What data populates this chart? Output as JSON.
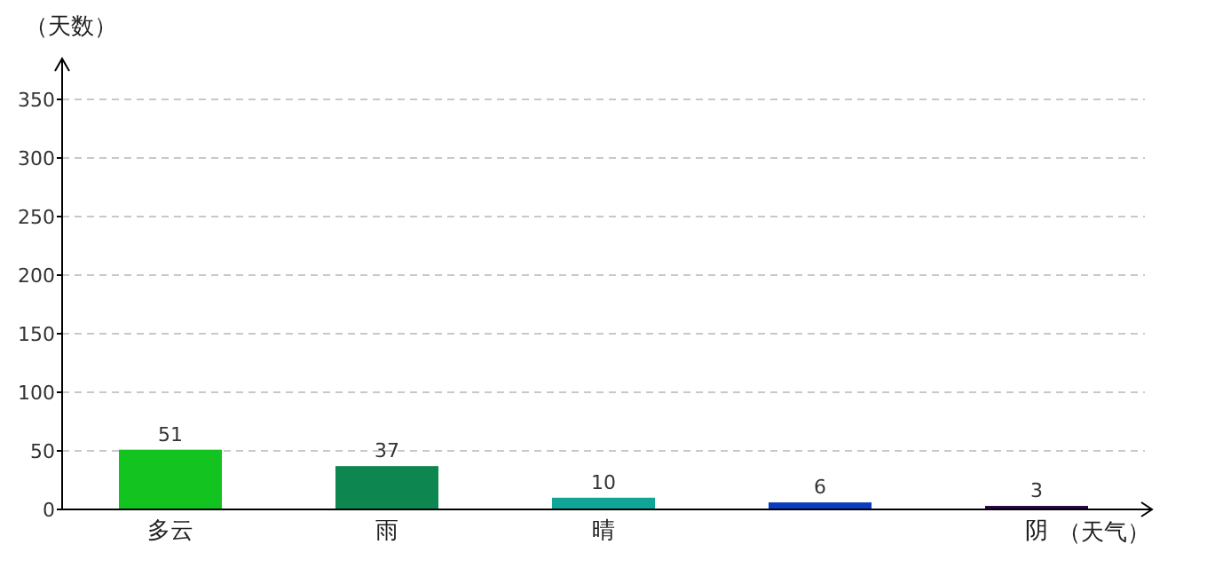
{
  "chart_data": {
    "type": "bar",
    "xlabel": "（天气）",
    "ylabel": "（天数）",
    "categories": [
      "多云",
      "雨",
      "晴",
      null,
      "阴"
    ],
    "values": [
      51,
      37,
      10,
      6,
      3
    ],
    "colors": [
      "#13c320",
      "#0d874f",
      "#10a596",
      "#0b3cbf",
      "#21073f"
    ],
    "ylim": [
      0,
      350
    ],
    "yticks": [
      0,
      50,
      100,
      150,
      200,
      250,
      300,
      350
    ],
    "grid": "y",
    "data_labels": true
  }
}
